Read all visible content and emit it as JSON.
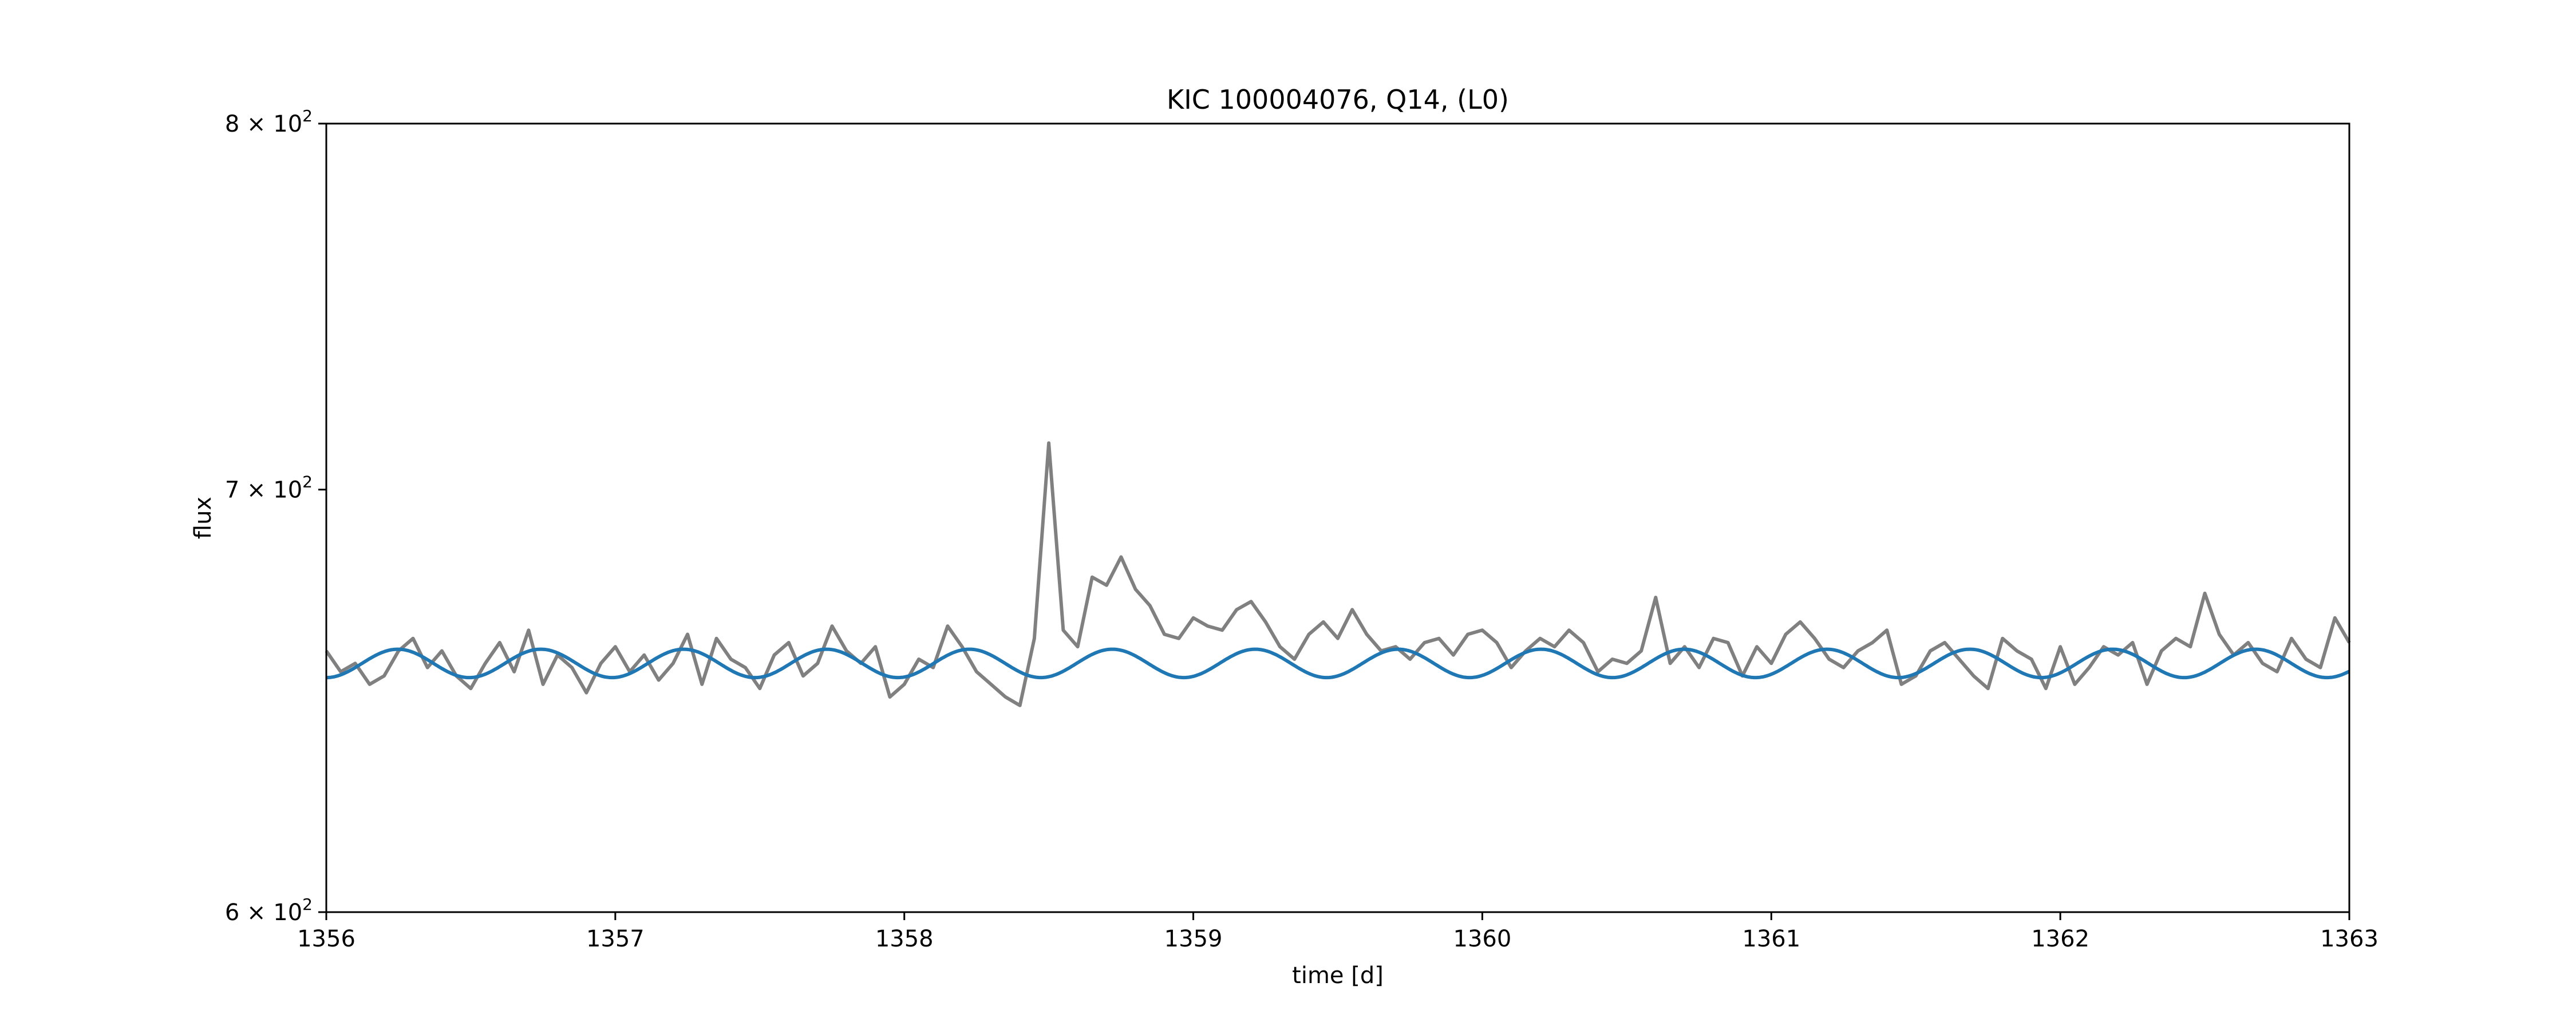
{
  "chart_data": {
    "type": "line",
    "title": "KIC 100004076, Q14, (L0)",
    "xlabel": "time [d]",
    "ylabel": "flux",
    "xlim": [
      1356,
      1363
    ],
    "ylim": [
      600,
      800
    ],
    "yscale": "log",
    "grid": false,
    "x_ticks": [
      {
        "value": 1356,
        "label": "1356"
      },
      {
        "value": 1357,
        "label": "1357"
      },
      {
        "value": 1358,
        "label": "1358"
      },
      {
        "value": 1359,
        "label": "1359"
      },
      {
        "value": 1360,
        "label": "1360"
      },
      {
        "value": 1361,
        "label": "1361"
      },
      {
        "value": 1362,
        "label": "1362"
      },
      {
        "value": 1363,
        "label": "1363"
      }
    ],
    "y_ticks": [
      {
        "value": 600,
        "mantissa": "6",
        "base": "10",
        "exp": "2"
      },
      {
        "value": 700,
        "mantissa": "7",
        "base": "10",
        "exp": "2"
      },
      {
        "value": 800,
        "mantissa": "8",
        "base": "10",
        "exp": "2"
      }
    ],
    "series": [
      {
        "color": "#808080",
        "x": [
          1356.0,
          1356.05,
          1356.1,
          1356.15,
          1356.2,
          1356.25,
          1356.3,
          1356.35,
          1356.4,
          1356.45,
          1356.5,
          1356.55,
          1356.6,
          1356.65,
          1356.7,
          1356.75,
          1356.8,
          1356.85,
          1356.9,
          1356.95,
          1357.0,
          1357.05,
          1357.1,
          1357.15,
          1357.2,
          1357.25,
          1357.3,
          1357.35,
          1357.4,
          1357.45,
          1357.5,
          1357.55,
          1357.6,
          1357.65,
          1357.7,
          1357.75,
          1357.8,
          1357.85,
          1357.9,
          1357.95,
          1358.0,
          1358.05,
          1358.1,
          1358.15,
          1358.2,
          1358.25,
          1358.3,
          1358.35,
          1358.4,
          1358.45,
          1358.5,
          1358.55,
          1358.6,
          1358.65,
          1358.7,
          1358.75,
          1358.8,
          1358.85,
          1358.9,
          1358.95,
          1359.0,
          1359.05,
          1359.1,
          1359.15,
          1359.2,
          1359.25,
          1359.3,
          1359.35,
          1359.4,
          1359.45,
          1359.5,
          1359.55,
          1359.6,
          1359.65,
          1359.7,
          1359.75,
          1359.8,
          1359.85,
          1359.9,
          1359.95,
          1360.0,
          1360.05,
          1360.1,
          1360.15,
          1360.2,
          1360.25,
          1360.3,
          1360.35,
          1360.4,
          1360.45,
          1360.5,
          1360.55,
          1360.6,
          1360.65,
          1360.7,
          1360.75,
          1360.8,
          1360.85,
          1360.9,
          1360.95,
          1361.0,
          1361.05,
          1361.1,
          1361.15,
          1361.2,
          1361.25,
          1361.3,
          1361.35,
          1361.4,
          1361.45,
          1361.5,
          1361.55,
          1361.6,
          1361.65,
          1361.7,
          1361.75,
          1361.8,
          1361.85,
          1361.9,
          1361.95,
          1362.0,
          1362.05,
          1362.1,
          1362.15,
          1362.2,
          1362.25,
          1362.3,
          1362.35,
          1362.4,
          1362.45,
          1362.5,
          1362.55,
          1362.6,
          1362.65,
          1362.7,
          1362.75,
          1362.8,
          1362.85,
          1362.9,
          1362.95,
          1363.0
        ],
        "y": [
          660,
          655,
          657,
          652,
          654,
          660,
          663,
          656,
          660,
          654,
          651,
          657,
          662,
          655,
          665,
          652,
          659,
          656,
          650,
          657,
          661,
          655,
          659,
          653,
          657,
          664,
          652,
          663,
          658,
          656,
          651,
          659,
          662,
          654,
          657,
          666,
          660,
          657,
          661,
          649,
          652,
          658,
          656,
          666,
          661,
          655,
          652,
          649,
          647,
          663,
          712,
          665,
          661,
          678,
          676,
          683,
          675,
          671,
          664,
          663,
          668,
          666,
          665,
          670,
          672,
          667,
          661,
          658,
          664,
          667,
          663,
          670,
          664,
          660,
          661,
          658,
          662,
          663,
          659,
          664,
          665,
          662,
          656,
          660,
          663,
          661,
          665,
          662,
          655,
          658,
          657,
          660,
          673,
          657,
          661,
          656,
          663,
          662,
          654,
          661,
          657,
          664,
          667,
          663,
          658,
          656,
          660,
          662,
          665,
          652,
          654,
          660,
          662,
          658,
          654,
          651,
          663,
          660,
          658,
          651,
          661,
          652,
          656,
          661,
          659,
          662,
          652,
          660,
          663,
          661,
          674,
          664,
          659,
          662,
          657,
          655,
          663,
          658,
          656,
          668,
          662
        ]
      },
      {
        "color": "#1f77b4",
        "model": "sinusoid",
        "mean": 657,
        "amplitude": 3.4,
        "period": 0.4945,
        "phase_ref": 1356.0,
        "phase_at_ref": -1.5708
      }
    ]
  }
}
